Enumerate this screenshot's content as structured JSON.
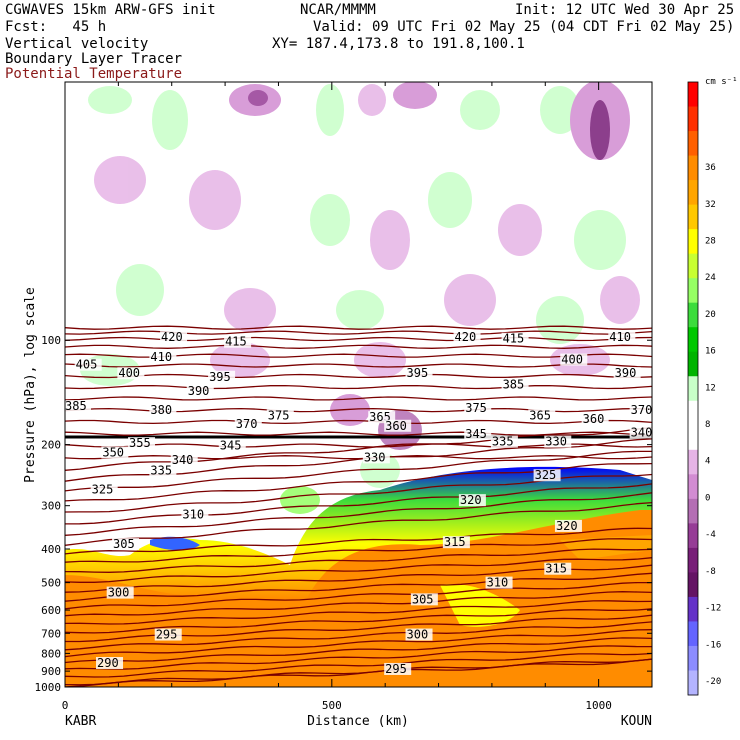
{
  "header": {
    "model": "CGWAVES 15km ARW-GFS init",
    "org": "NCAR/MMMM",
    "init": "Init: 12 UTC Wed 30 Apr 25",
    "fcst": "Fcst:   45 h",
    "valid": "Valid: 09 UTC Fri 02 May 25 (04 CDT Fri 02 May 25)",
    "field1": "Vertical velocity",
    "field2": "Boundary Layer Tracer",
    "field3": "Potential Temperature",
    "xy": "XY= 187.4,173.8 to 191.8,100.1"
  },
  "colorbar": {
    "unit": "cm s⁻¹",
    "labels": [
      "36",
      "32",
      "28",
      "24",
      "20",
      "16",
      "12",
      "8",
      "4",
      "0",
      "-4",
      "-8",
      "-12",
      "-16",
      "-20"
    ],
    "colors": [
      "#ff0000",
      "#ff3000",
      "#ff6000",
      "#ff8c00",
      "#ffa500",
      "#ffc800",
      "#ffff00",
      "#c8ff32",
      "#96ff64",
      "#3cdc3c",
      "#00c800",
      "#00b400",
      "#c8ffc8",
      "#ffffff",
      "#ffffff",
      "#e6b4e6",
      "#d28cd2",
      "#b46eb4",
      "#963c96",
      "#781e78",
      "#641464",
      "#6432c8",
      "#6464ff",
      "#8c8cff",
      "#b4b4ff"
    ]
  },
  "chart_data": {
    "type": "heatmap",
    "title": "Vertical velocity / Boundary Layer Tracer / Potential Temperature",
    "xlabel": "Distance (km)",
    "ylabel": "Pressure (hPa), log scale",
    "x_ticks": [
      0,
      500,
      1000
    ],
    "y_ticks": [
      100,
      200,
      300,
      400,
      500,
      600,
      700,
      800,
      900,
      1000
    ],
    "xlim": [
      0,
      1100
    ],
    "ylim": [
      1000,
      18
    ],
    "x_endpoints": {
      "left": "KABR",
      "right": "KOUN"
    },
    "theta_labels": [
      {
        "v": "420",
        "x": 180,
        "p": 100
      },
      {
        "v": "415",
        "x": 300,
        "p": 103
      },
      {
        "v": "420",
        "x": 730,
        "p": 100
      },
      {
        "v": "415",
        "x": 820,
        "p": 101
      },
      {
        "v": "410",
        "x": 1020,
        "p": 100
      },
      {
        "v": "405",
        "x": 20,
        "p": 120
      },
      {
        "v": "400",
        "x": 100,
        "p": 127
      },
      {
        "v": "410",
        "x": 160,
        "p": 114
      },
      {
        "v": "395",
        "x": 270,
        "p": 130
      },
      {
        "v": "395",
        "x": 640,
        "p": 127
      },
      {
        "v": "400",
        "x": 930,
        "p": 116
      },
      {
        "v": "390",
        "x": 1030,
        "p": 127
      },
      {
        "v": "390",
        "x": 230,
        "p": 143
      },
      {
        "v": "385",
        "x": 820,
        "p": 137
      },
      {
        "v": "385",
        "x": 0,
        "p": 158
      },
      {
        "v": "380",
        "x": 160,
        "p": 162
      },
      {
        "v": "375",
        "x": 380,
        "p": 168
      },
      {
        "v": "370",
        "x": 320,
        "p": 178
      },
      {
        "v": "375",
        "x": 750,
        "p": 160
      },
      {
        "v": "365",
        "x": 870,
        "p": 168
      },
      {
        "v": "360",
        "x": 970,
        "p": 172
      },
      {
        "v": "370",
        "x": 1060,
        "p": 162
      },
      {
        "v": "365",
        "x": 570,
        "p": 170
      },
      {
        "v": "360",
        "x": 600,
        "p": 180
      },
      {
        "v": "345",
        "x": 750,
        "p": 190
      },
      {
        "v": "340",
        "x": 1060,
        "p": 188
      },
      {
        "v": "355",
        "x": 120,
        "p": 202
      },
      {
        "v": "350",
        "x": 70,
        "p": 215
      },
      {
        "v": "345",
        "x": 290,
        "p": 205
      },
      {
        "v": "340",
        "x": 200,
        "p": 226
      },
      {
        "v": "335",
        "x": 160,
        "p": 242
      },
      {
        "v": "335",
        "x": 800,
        "p": 200
      },
      {
        "v": "330",
        "x": 900,
        "p": 200
      },
      {
        "v": "330",
        "x": 560,
        "p": 222
      },
      {
        "v": "325",
        "x": 50,
        "p": 275
      },
      {
        "v": "325",
        "x": 880,
        "p": 250
      },
      {
        "v": "320",
        "x": 740,
        "p": 295
      },
      {
        "v": "320",
        "x": 920,
        "p": 350
      },
      {
        "v": "310",
        "x": 220,
        "p": 325
      },
      {
        "v": "305",
        "x": 90,
        "p": 395
      },
      {
        "v": "315",
        "x": 710,
        "p": 390
      },
      {
        "v": "315",
        "x": 900,
        "p": 465
      },
      {
        "v": "310",
        "x": 790,
        "p": 510
      },
      {
        "v": "300",
        "x": 80,
        "p": 545
      },
      {
        "v": "305",
        "x": 650,
        "p": 570
      },
      {
        "v": "300",
        "x": 640,
        "p": 720
      },
      {
        "v": "295",
        "x": 170,
        "p": 720
      },
      {
        "v": "290",
        "x": 60,
        "p": 870
      },
      {
        "v": "295",
        "x": 600,
        "p": 905
      }
    ]
  }
}
